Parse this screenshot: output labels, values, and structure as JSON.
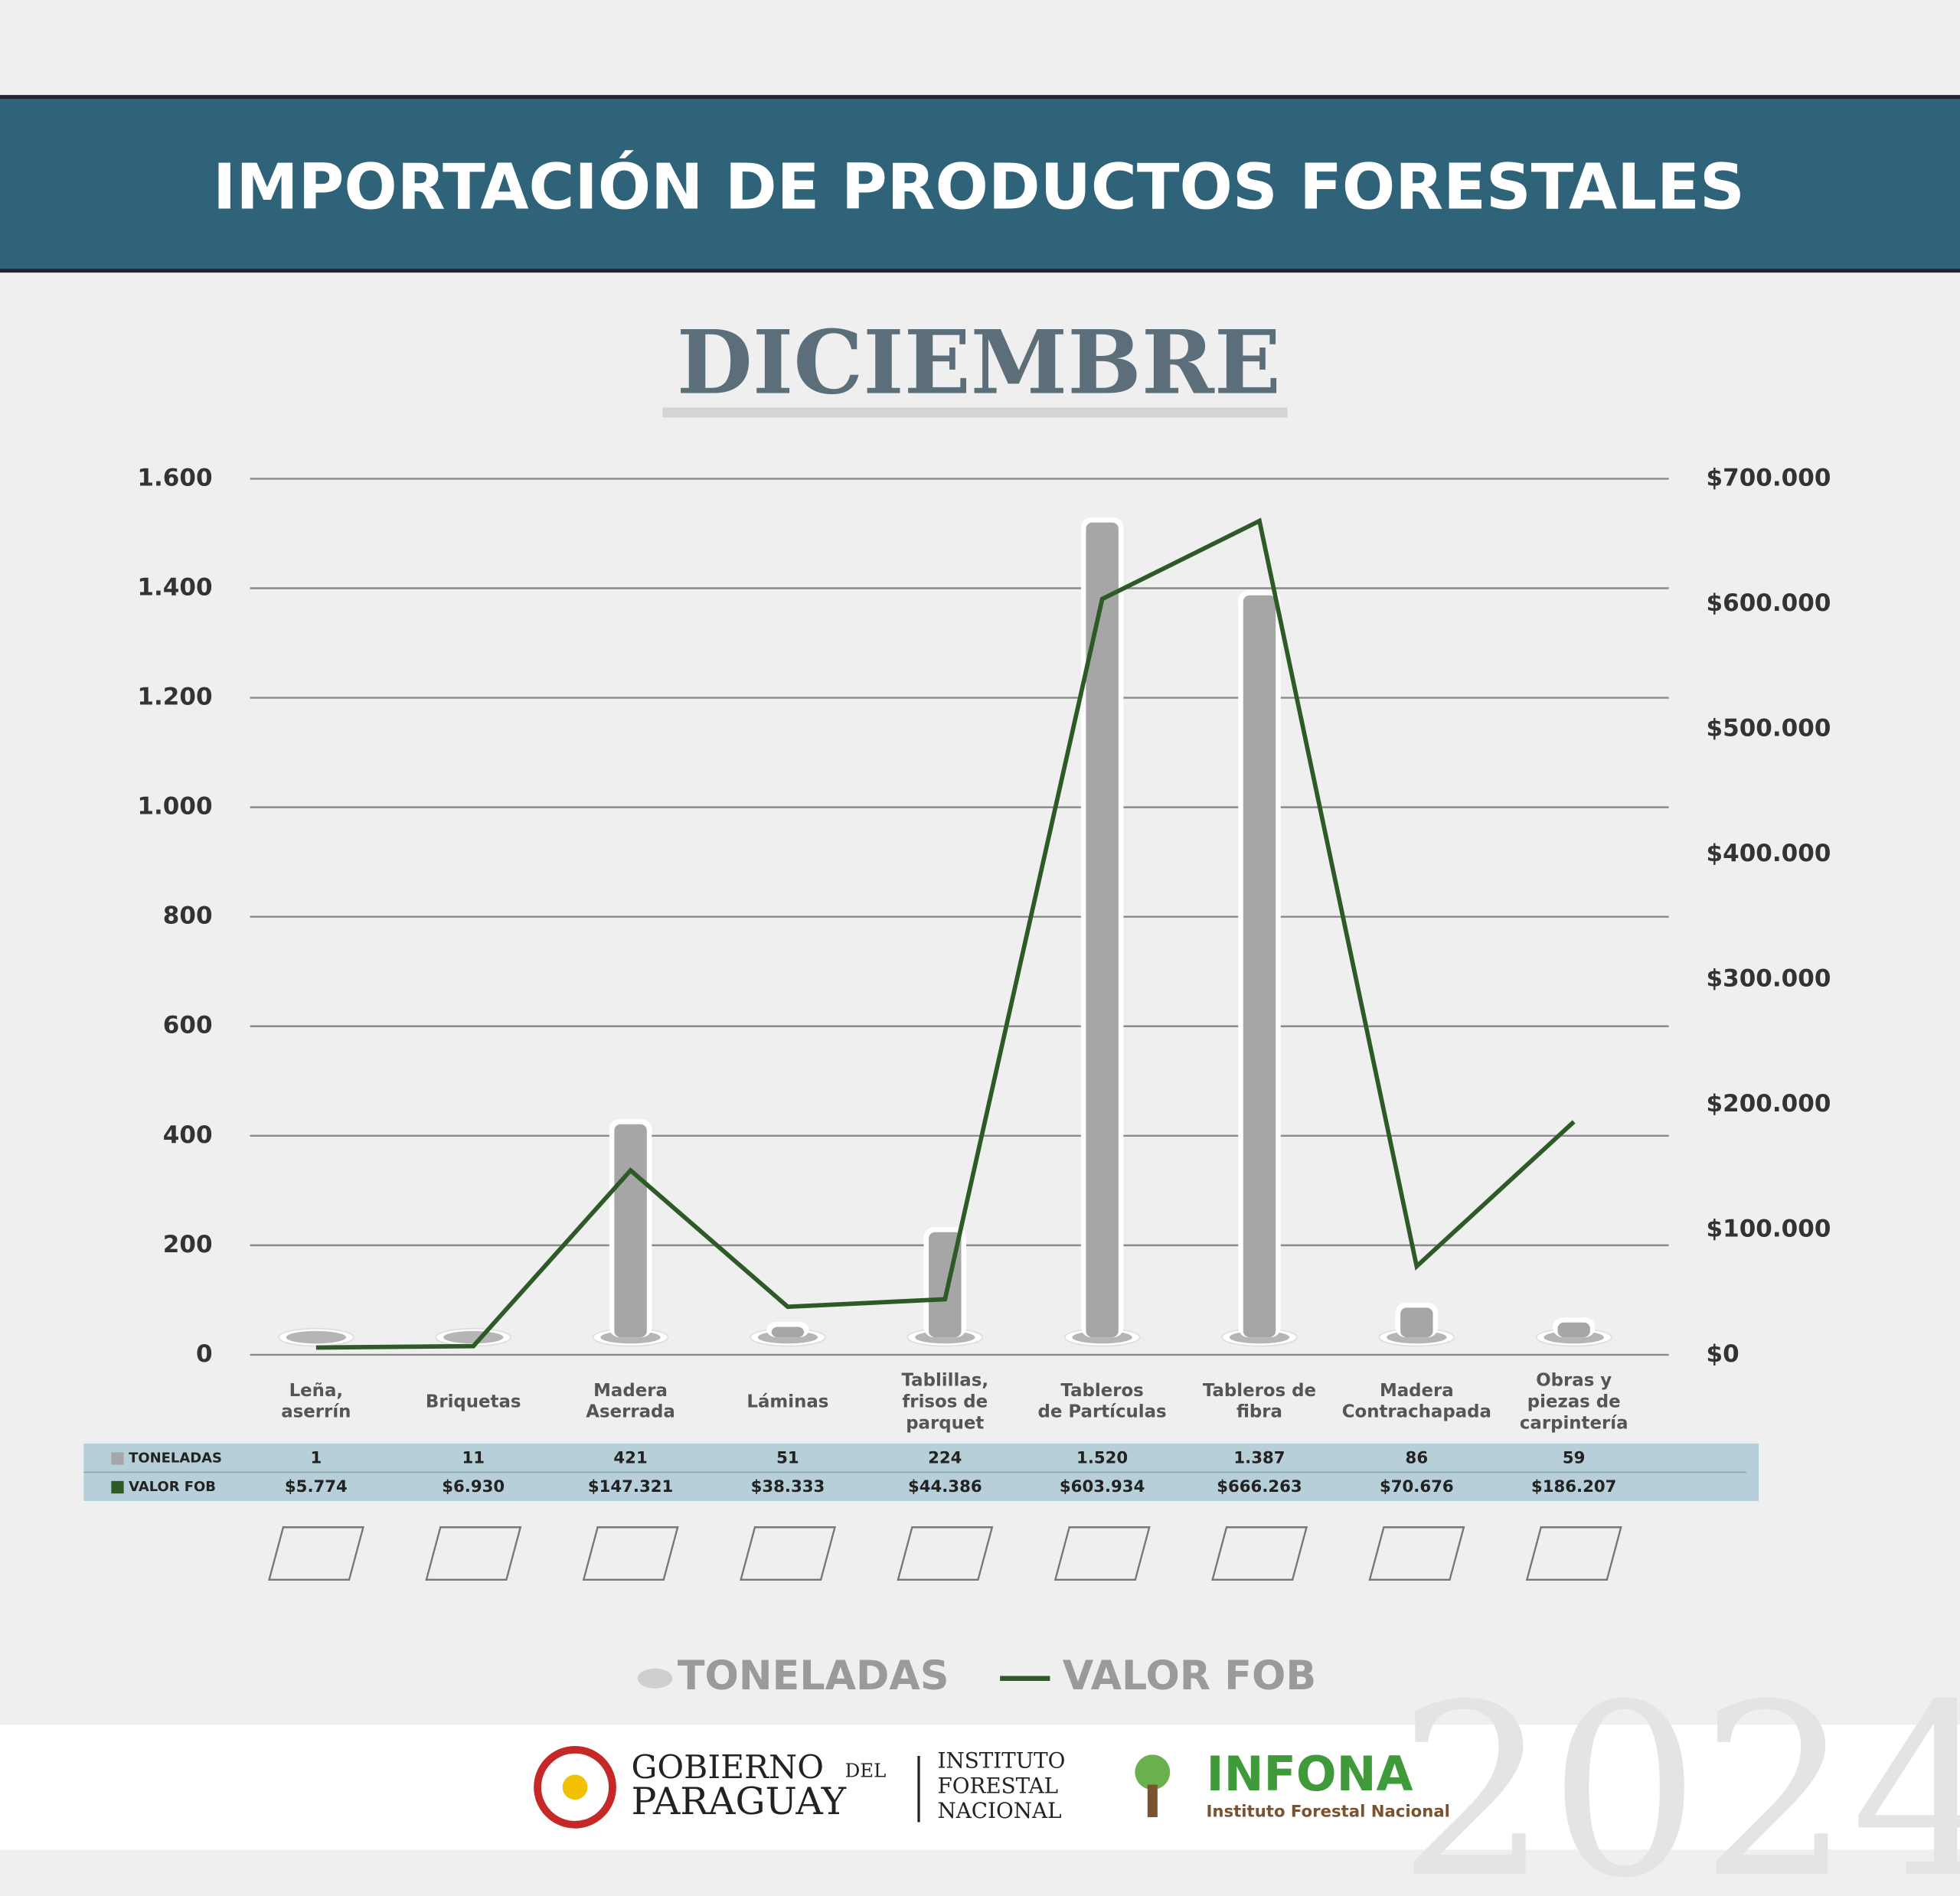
{
  "chart_data": {
    "type": "bar",
    "title": "IMPORTACIÓN DE PRODUCTOS FORESTALES",
    "subtitle": "DICIEMBRE",
    "categories": [
      "Leña,\naserrín",
      "Briquetas",
      "Madera\nAserrada",
      "Láminas",
      "Tablillas,\nfrisos de\nparquet",
      "Tableros\nde Partículas",
      "Tableros de\nfibra",
      "Madera\nContrachapada",
      "Obras y\npiezas de\ncarpintería"
    ],
    "series": [
      {
        "name": "TONELADAS",
        "type": "bar",
        "color": "#a6a6a6",
        "values": [
          1,
          11,
          421,
          51,
          224,
          1520,
          1387,
          86,
          59
        ],
        "value_labels": [
          "1",
          "11",
          "421",
          "51",
          "224",
          "1.520",
          "1.387",
          "86",
          "59"
        ]
      },
      {
        "name": "VALOR FOB",
        "type": "line",
        "axis": "y2",
        "color": "#2d5a27",
        "values": [
          5774,
          6930,
          147321,
          38333,
          44386,
          603934,
          666263,
          70676,
          186207
        ],
        "value_labels": [
          "$5.774",
          "$6.930",
          "$147.321",
          "$38.333",
          "$44.386",
          "$603.934",
          "$666.263",
          "$70.676",
          "$186.207"
        ]
      }
    ],
    "ylim": [
      0,
      1600
    ],
    "yticks": [
      0,
      200,
      400,
      600,
      800,
      {
        "value": 1000,
        "label": "1.000"
      },
      {
        "value": 1200,
        "label": "1.200"
      },
      {
        "value": 1400,
        "label": "1.400"
      },
      {
        "value": 1600,
        "label": "1.600"
      }
    ],
    "y2lim": [
      0,
      700000
    ],
    "y2ticks": [
      {
        "value": 0,
        "label": "$0"
      },
      {
        "value": 100000,
        "label": "$100.000"
      },
      {
        "value": 200000,
        "label": "$200.000"
      },
      {
        "value": 300000,
        "label": "$300.000"
      },
      {
        "value": 400000,
        "label": "$400.000"
      },
      {
        "value": 500000,
        "label": "$500.000"
      },
      {
        "value": 600000,
        "label": "$600.000"
      },
      {
        "value": 700000,
        "label": "$700.000"
      }
    ],
    "grid": true,
    "legend": "bottom"
  },
  "footer": {
    "gov": [
      "GOBIERNO",
      "DEL",
      "PARAGUAY"
    ],
    "institute": [
      "INSTITUTO",
      "FORESTAL",
      "NACIONAL"
    ],
    "brand": "INFONA",
    "brand_sub": "Instituto Forestal Nacional",
    "year": "2024"
  }
}
